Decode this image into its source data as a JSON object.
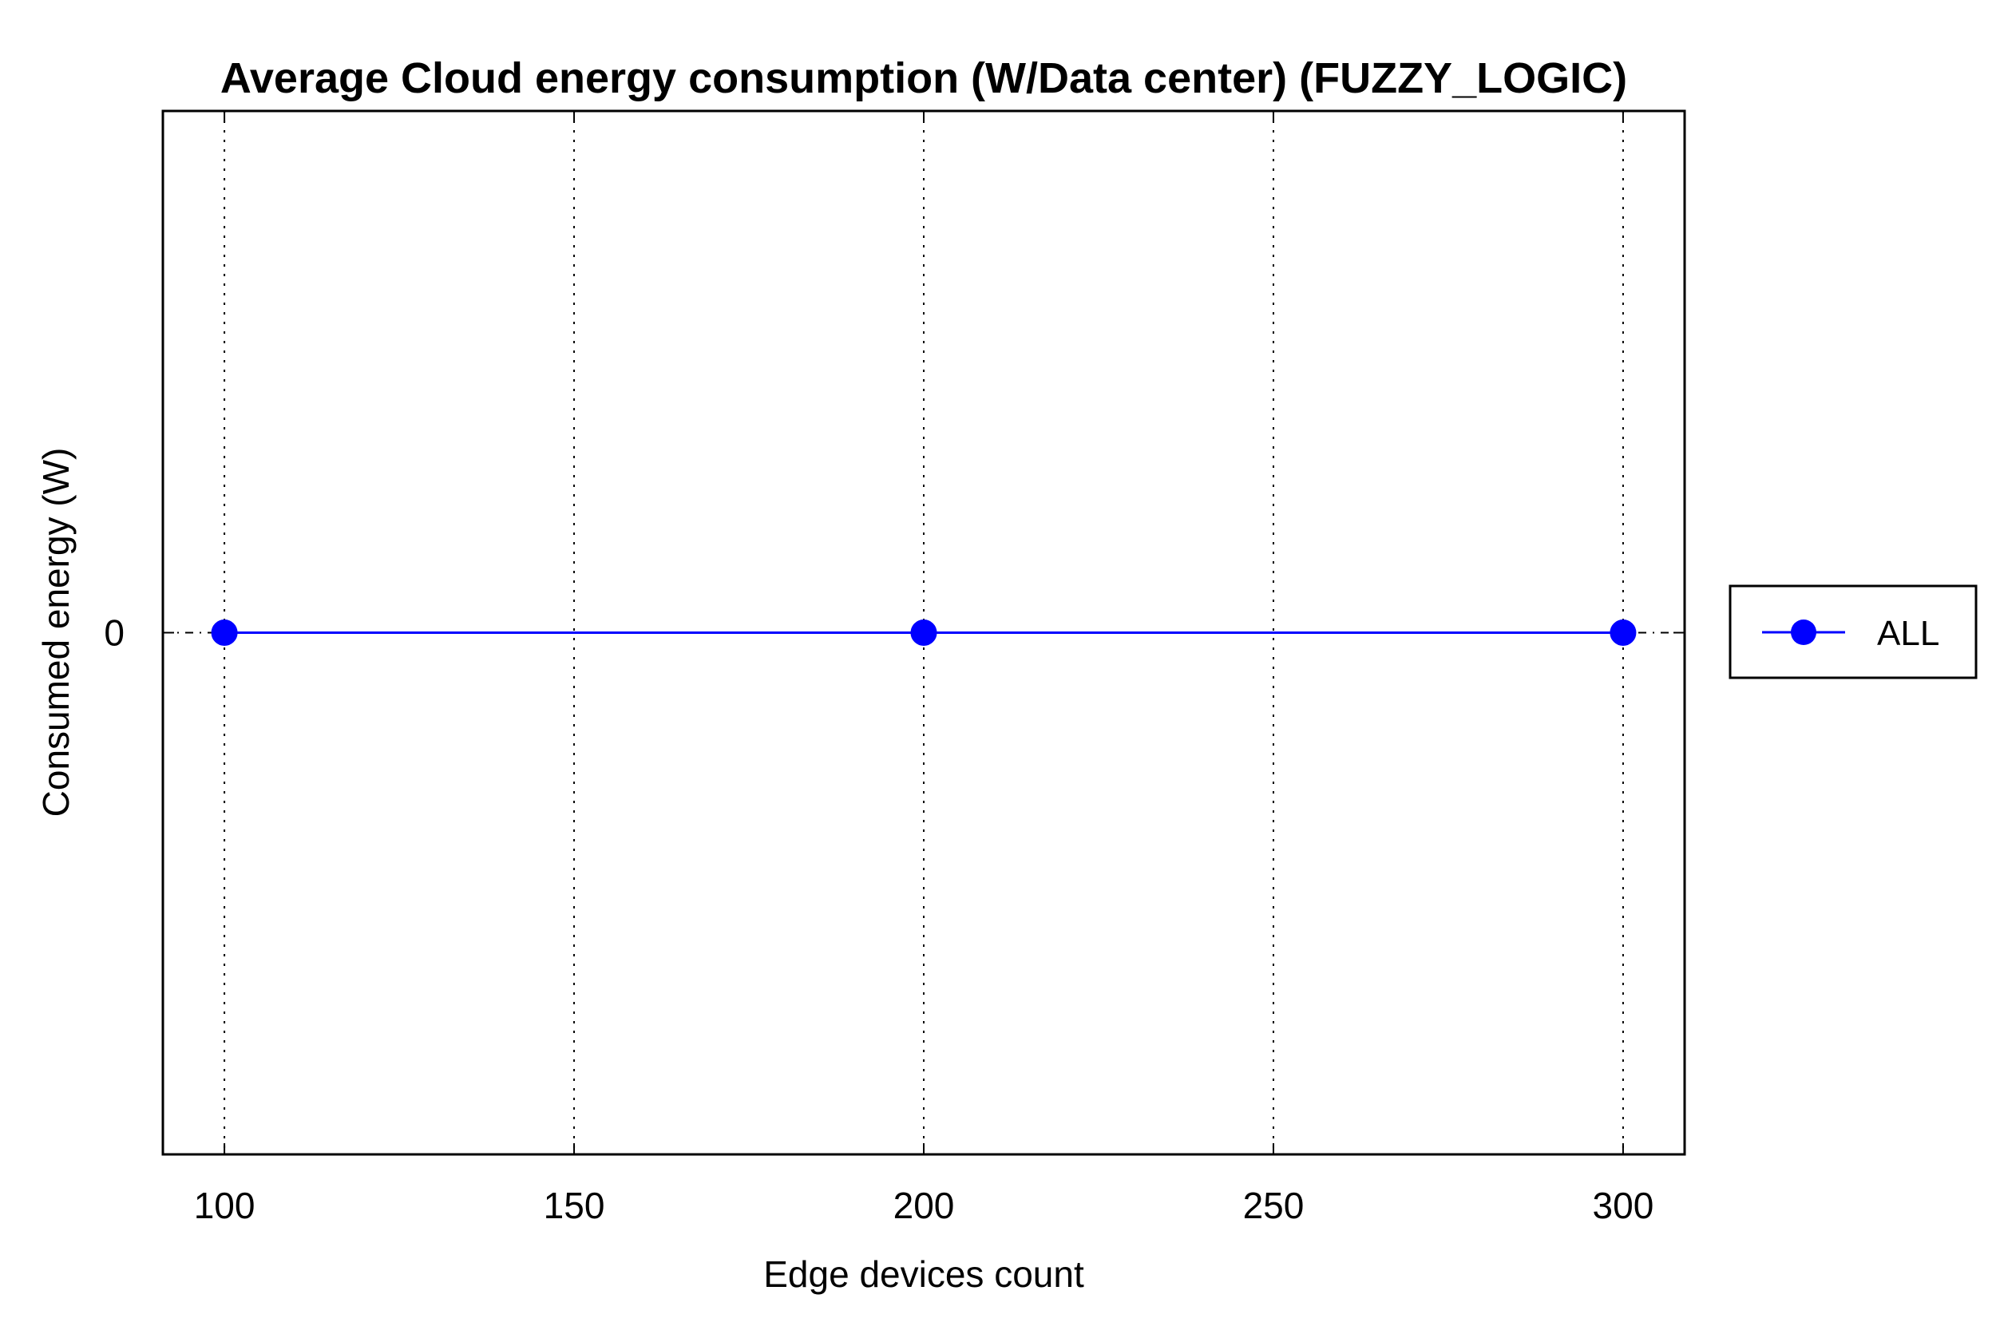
{
  "chart_data": {
    "type": "line",
    "title": "Average Cloud energy consumption (W/Data center) (FUZZY_LOGIC)",
    "xlabel": "Edge devices count",
    "ylabel": "Consumed energy (W)",
    "x_ticks": [
      "100",
      "150",
      "200",
      "250",
      "300"
    ],
    "y_ticks": [
      "0"
    ],
    "xlim": [
      91.2,
      308.8
    ],
    "ylim": [
      -1,
      1
    ],
    "grid": "x dotted",
    "legend_position": "outside-right",
    "series": [
      {
        "name": "ALL",
        "color": "#0000ff",
        "marker": "circle",
        "x": [
          100,
          200,
          300
        ],
        "y": [
          0,
          0,
          0
        ]
      }
    ]
  }
}
